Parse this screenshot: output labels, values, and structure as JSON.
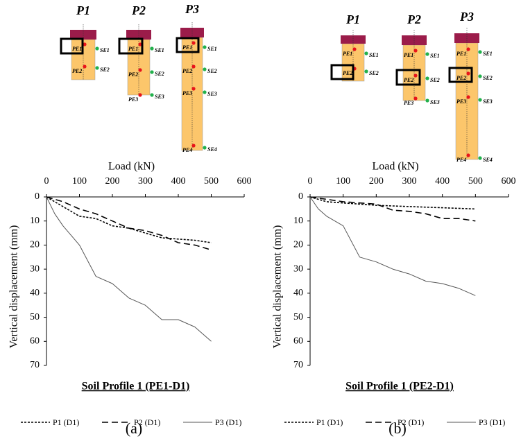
{
  "chart_data": [
    {
      "type": "line",
      "caption": "(a)",
      "title": "Soil Profile 1 (PE1-D1)",
      "x_label": "Load (kN)",
      "y_label": "Vertical displacement (mm)",
      "xlim": [
        0,
        600
      ],
      "xticks": [
        0,
        100,
        200,
        300,
        400,
        500,
        600
      ],
      "ylim": [
        0,
        70
      ],
      "yticks": [
        0,
        10,
        20,
        30,
        40,
        50,
        60,
        70
      ],
      "y_inverted": true,
      "x_axis_top": true,
      "grid": false,
      "series": [
        {
          "name": "P1 (D1)",
          "color": "#000000",
          "style": "short-dash",
          "x": [
            0,
            50,
            100,
            150,
            200,
            250,
            300,
            350,
            400,
            450,
            500
          ],
          "values": [
            0,
            4,
            8,
            9,
            12,
            13,
            15,
            17,
            17.5,
            18,
            19
          ]
        },
        {
          "name": "P2 (D1)",
          "color": "#000000",
          "style": "long-dash",
          "x": [
            0,
            50,
            100,
            150,
            200,
            250,
            300,
            350,
            400,
            450,
            500
          ],
          "values": [
            0,
            2,
            5,
            7,
            10,
            13,
            14,
            16,
            19,
            20,
            22
          ]
        },
        {
          "name": "P3 (D1)",
          "color": "#555555",
          "style": "solid",
          "x": [
            0,
            25,
            50,
            100,
            150,
            200,
            250,
            300,
            350,
            400,
            450,
            500
          ],
          "values": [
            0,
            7,
            12,
            20,
            33,
            36,
            42,
            45,
            51,
            51,
            54,
            60
          ]
        }
      ]
    },
    {
      "type": "line",
      "caption": "(b)",
      "title": "Soil Profile 1 (PE2-D1)",
      "x_label": "Load (kN)",
      "y_label": "Vertical displacement (mm)",
      "xlim": [
        0,
        600
      ],
      "xticks": [
        0,
        100,
        200,
        300,
        400,
        500,
        600
      ],
      "ylim": [
        0,
        70
      ],
      "yticks": [
        0,
        10,
        20,
        30,
        40,
        50,
        60,
        70
      ],
      "y_inverted": true,
      "x_axis_top": true,
      "grid": false,
      "series": [
        {
          "name": "P1 (D1)",
          "color": "#000000",
          "style": "short-dash",
          "x": [
            0,
            50,
            100,
            200,
            300,
            400,
            500
          ],
          "values": [
            0,
            2,
            2.5,
            3.5,
            4,
            4.5,
            5
          ]
        },
        {
          "name": "P2 (D1)",
          "color": "#000000",
          "style": "long-dash",
          "x": [
            0,
            100,
            200,
            250,
            300,
            350,
            400,
            450,
            500
          ],
          "values": [
            0,
            2,
            3,
            5.5,
            6,
            7,
            9,
            9,
            10
          ]
        },
        {
          "name": "P3 (D1)",
          "color": "#555555",
          "style": "solid",
          "x": [
            0,
            25,
            50,
            100,
            150,
            200,
            250,
            300,
            350,
            400,
            450,
            500
          ],
          "values": [
            0,
            5,
            8,
            12,
            25,
            27,
            30,
            32,
            35,
            36,
            38,
            41
          ]
        }
      ]
    }
  ],
  "diagrams": [
    {
      "piles": [
        {
          "label": "P1",
          "pe": [
            "PE1",
            "PE2"
          ],
          "se": [
            "SE1",
            "SE2"
          ]
        },
        {
          "label": "P2",
          "pe": [
            "PE1",
            "PE2",
            "PE3"
          ],
          "se": [
            "SE1",
            "SE2",
            "SE3"
          ]
        },
        {
          "label": "P3",
          "pe": [
            "PE1",
            "PE2",
            "PE3",
            "PE4"
          ],
          "se": [
            "SE1",
            "SE2",
            "SE3",
            "SE4"
          ]
        }
      ]
    },
    {
      "piles": [
        {
          "label": "P1",
          "pe": [
            "PE1",
            "PE2"
          ],
          "se": [
            "SE1",
            "SE2"
          ]
        },
        {
          "label": "P2",
          "pe": [
            "PE1",
            "PE2",
            "PE3"
          ],
          "se": [
            "SE1",
            "SE2",
            "SE3"
          ]
        },
        {
          "label": "P3",
          "pe": [
            "PE1",
            "PE2",
            "PE3",
            "PE4"
          ],
          "se": [
            "SE1",
            "SE2",
            "SE3",
            "SE4"
          ]
        }
      ]
    }
  ]
}
